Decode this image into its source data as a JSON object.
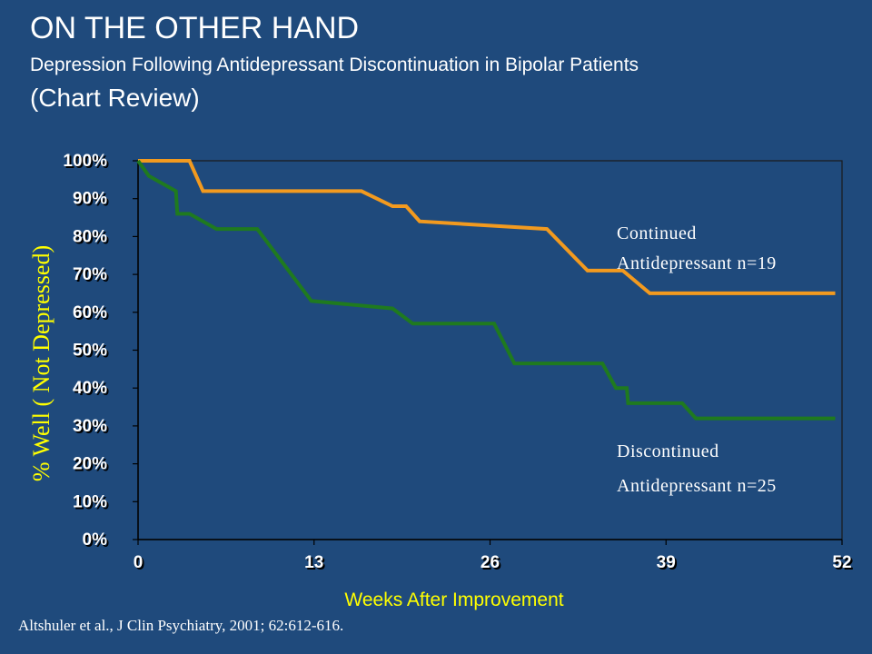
{
  "slide": {
    "title": "ON THE OTHER HAND",
    "subtitle": "Depression Following Antidepressant Discontinuation in Bipolar Patients",
    "subtitle2": "(Chart Review)",
    "citation": "Altshuler et al., J Clin Psychiatry, 2001; 62:612-616."
  },
  "chart_data": {
    "type": "line",
    "xlabel": "Weeks After Improvement",
    "ylabel": "% Well ( Not Depressed)",
    "xlim": [
      0,
      52
    ],
    "ylim": [
      0,
      100
    ],
    "x_ticks": [
      0,
      13,
      26,
      39,
      52
    ],
    "x_tick_labels": [
      "0",
      "13",
      "26",
      "39",
      "52"
    ],
    "y_ticks": [
      0,
      10,
      20,
      30,
      40,
      50,
      60,
      70,
      80,
      90,
      100
    ],
    "y_tick_labels": [
      "0%",
      "10%",
      "20%",
      "30%",
      "40%",
      "50%",
      "60%",
      "70%",
      "80%",
      "90%",
      "100%"
    ],
    "series": [
      {
        "name_lines": [
          "Continued",
          "Antidepressant n=19"
        ],
        "color": "#f29a1f",
        "points": [
          [
            0,
            100
          ],
          [
            3.8,
            100
          ],
          [
            4.8,
            92
          ],
          [
            16.5,
            92
          ],
          [
            18.8,
            88
          ],
          [
            19.8,
            88
          ],
          [
            20.8,
            84
          ],
          [
            30.2,
            82
          ],
          [
            33.2,
            71
          ],
          [
            35.8,
            71
          ],
          [
            37.8,
            65
          ],
          [
            51.5,
            65
          ]
        ]
      },
      {
        "name_lines": [
          "Discontinued",
          "Antidepressant n=25"
        ],
        "color": "#1f7a1f",
        "points": [
          [
            0,
            100
          ],
          [
            0.8,
            96
          ],
          [
            2.8,
            92
          ],
          [
            2.9,
            86
          ],
          [
            3.8,
            86
          ],
          [
            5.8,
            82
          ],
          [
            8.8,
            82
          ],
          [
            12.8,
            63
          ],
          [
            18.8,
            61
          ],
          [
            20.3,
            57
          ],
          [
            26.3,
            57
          ],
          [
            27.8,
            46.5
          ],
          [
            34.3,
            46.5
          ],
          [
            35.3,
            40
          ],
          [
            36.1,
            40
          ],
          [
            36.2,
            36
          ],
          [
            40.2,
            36
          ],
          [
            41.2,
            32
          ],
          [
            51.5,
            32
          ]
        ]
      }
    ],
    "grid": false,
    "frame_color": "#1a1a1a",
    "axis_color": "#000000"
  }
}
